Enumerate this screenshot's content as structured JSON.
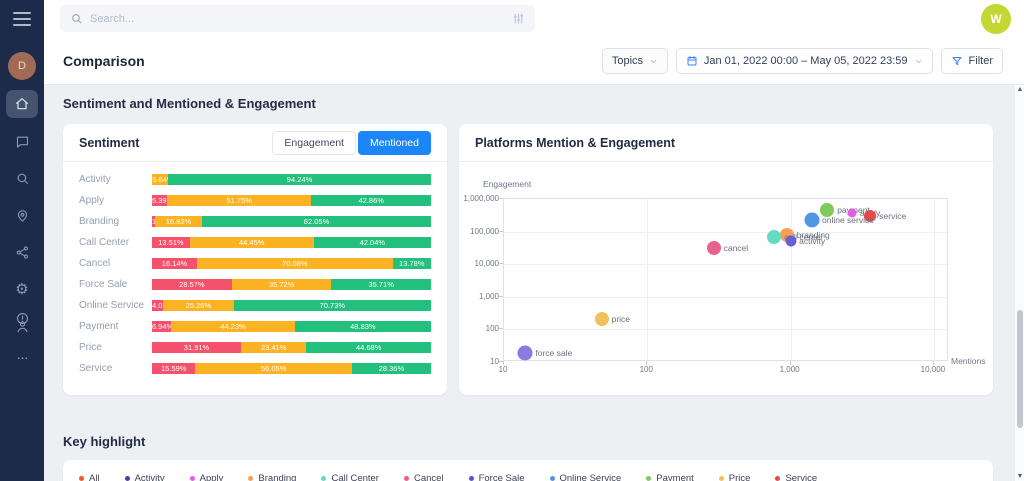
{
  "colors": {
    "accent_blue": "#1a86f8",
    "negative": "#f4516c",
    "neutral": "#fbb324",
    "positive": "#23bf7d"
  },
  "sidebar": {
    "user_initial": "D"
  },
  "header": {
    "search_placeholder": "Search...",
    "user_initial": "W"
  },
  "titlebar": {
    "title": "Comparison",
    "topics_label": "Topics",
    "date_range": "Jan 01, 2022 00:00 – May 05, 2022 23:59",
    "filter_label": "Filter"
  },
  "section_title": "Sentiment and Mentioned & Engagement",
  "sentiment_card": {
    "title": "Sentiment",
    "toggle": {
      "engagement": "Engagement",
      "mentioned": "Mentioned",
      "selected": "Mentioned"
    }
  },
  "platforms_card": {
    "title": "Platforms Mention & Engagement"
  },
  "key_highlight": {
    "title": "Key highlight",
    "legend": [
      {
        "label": "All",
        "color": "#f4591f"
      },
      {
        "label": "Activity",
        "color": "#4b3fae"
      },
      {
        "label": "Apply",
        "color": "#e35ee3"
      },
      {
        "label": "Branding",
        "color": "#f5a055"
      },
      {
        "label": "Call Center",
        "color": "#66d9c5"
      },
      {
        "label": "Cancel",
        "color": "#e75e8d"
      },
      {
        "label": "Force Sale",
        "color": "#5a50d2"
      },
      {
        "label": "Online Service",
        "color": "#4f97e5"
      },
      {
        "label": "Payment",
        "color": "#7ecb5a"
      },
      {
        "label": "Price",
        "color": "#eec25f"
      },
      {
        "label": "Service",
        "color": "#e5484d"
      }
    ]
  },
  "chart_data": [
    {
      "type": "bar",
      "variant": "horizontal-stacked-percent",
      "title": "Sentiment",
      "mode": "Mentioned",
      "categories": [
        "Activity",
        "Apply",
        "Branding",
        "Call Center",
        "Cancel",
        "Force Sale",
        "Online Service",
        "Payment",
        "Price",
        "Service"
      ],
      "series": [
        {
          "name": "negative",
          "color": "#f4516c",
          "values": [
            0.12,
            5.39,
            1.03,
            13.51,
            16.14,
            28.57,
            4.01,
            6.94,
            31.91,
            15.59
          ]
        },
        {
          "name": "neutral",
          "color": "#fbb324",
          "values": [
            5.64,
            51.75,
            16.92,
            44.45,
            70.08,
            35.72,
            25.26,
            44.23,
            23.41,
            56.05
          ]
        },
        {
          "name": "positive",
          "color": "#23bf7d",
          "values": [
            94.24,
            42.86,
            82.05,
            42.04,
            13.78,
            35.71,
            70.73,
            48.83,
            44.68,
            28.36
          ]
        }
      ],
      "unit": "%",
      "xlim": [
        0,
        100
      ]
    },
    {
      "type": "scatter",
      "title": "Platforms Mention & Engagement",
      "xlabel": "Mentions",
      "ylabel": "Engagement",
      "x_scale": "log",
      "y_scale": "log",
      "xlim": [
        10,
        10000
      ],
      "ylim": [
        10,
        1000000
      ],
      "x_ticks": [
        "10",
        "100",
        "1,000",
        "10,000"
      ],
      "y_ticks": [
        "1,000,000",
        "100,000",
        "10,000",
        "1,000",
        "100",
        "10"
      ],
      "grid": true,
      "points": [
        {
          "label": "payment",
          "mentions": 1800,
          "engagement": 460000,
          "color": "#7ecb5a",
          "size": 14
        },
        {
          "label": "apply",
          "mentions": 2700,
          "engagement": 370000,
          "color": "#e35ee3",
          "size": 9
        },
        {
          "label": "service",
          "mentions": 3600,
          "engagement": 300000,
          "color": "#e5484d",
          "size": 12
        },
        {
          "label": "online service",
          "mentions": 1400,
          "engagement": 230000,
          "color": "#4f97e5",
          "size": 15
        },
        {
          "label": "branding",
          "mentions": 940,
          "engagement": 79000,
          "color": "#f5a055",
          "size": 14
        },
        {
          "label": "call center",
          "mentions": 770,
          "engagement": 68000,
          "color": "#66d9c5",
          "size": 14
        },
        {
          "label": "activity",
          "mentions": 1000,
          "engagement": 51000,
          "color": "#6a5fd0",
          "size": 11
        },
        {
          "label": "cancel",
          "mentions": 290,
          "engagement": 32000,
          "color": "#e7628e",
          "size": 14
        },
        {
          "label": "price",
          "mentions": 48,
          "engagement": 210,
          "color": "#eec25f",
          "size": 14
        },
        {
          "label": "force sale",
          "mentions": 14,
          "engagement": 19,
          "color": "#8b7ae0",
          "size": 15
        }
      ]
    }
  ]
}
